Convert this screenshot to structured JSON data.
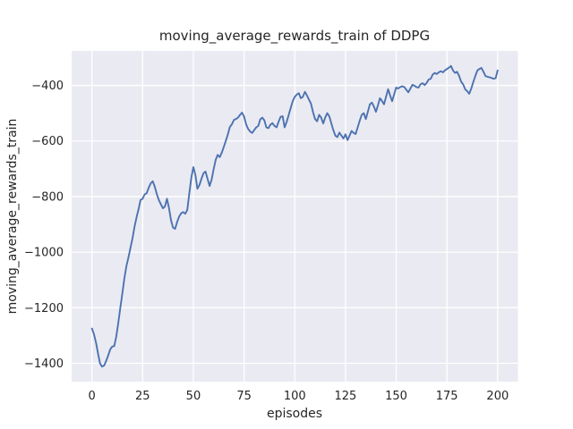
{
  "figure": {
    "background": "#ffffff",
    "axes_background": "#eaeaf2",
    "grid_color": "#ffffff",
    "text_color": "#262626",
    "line_color": "#4c72b0"
  },
  "chart_data": {
    "type": "line",
    "title": "moving_average_rewards_train of DDPG",
    "xlabel": "episodes",
    "ylabel": "moving_average_rewards_train",
    "grid": true,
    "legend_position": "none",
    "xlim": [
      -10,
      210
    ],
    "ylim": [
      -1466,
      -276
    ],
    "xticks": [
      {
        "value": 0,
        "label": "0"
      },
      {
        "value": 25,
        "label": "25"
      },
      {
        "value": 50,
        "label": "50"
      },
      {
        "value": 75,
        "label": "75"
      },
      {
        "value": 100,
        "label": "100"
      },
      {
        "value": 125,
        "label": "125"
      },
      {
        "value": 150,
        "label": "150"
      },
      {
        "value": 175,
        "label": "175"
      },
      {
        "value": 200,
        "label": "200"
      }
    ],
    "yticks": [
      {
        "value": -400,
        "label": "−400"
      },
      {
        "value": -600,
        "label": "−600"
      },
      {
        "value": -800,
        "label": "−800"
      },
      {
        "value": -1000,
        "label": "−1000"
      },
      {
        "value": -1200,
        "label": "−1200"
      },
      {
        "value": -1400,
        "label": "−1400"
      }
    ],
    "series": [
      {
        "name": "moving_average_rewards_train",
        "color": "#4c72b0",
        "x_start": 0,
        "x_step": 1,
        "values": [
          -1275,
          -1295,
          -1325,
          -1365,
          -1400,
          -1412,
          -1408,
          -1392,
          -1372,
          -1350,
          -1340,
          -1338,
          -1305,
          -1255,
          -1200,
          -1150,
          -1095,
          -1050,
          -1020,
          -985,
          -950,
          -910,
          -875,
          -845,
          -812,
          -808,
          -792,
          -788,
          -768,
          -752,
          -745,
          -765,
          -792,
          -812,
          -828,
          -842,
          -836,
          -808,
          -842,
          -885,
          -912,
          -916,
          -892,
          -872,
          -860,
          -856,
          -862,
          -848,
          -790,
          -732,
          -694,
          -722,
          -772,
          -758,
          -736,
          -716,
          -710,
          -736,
          -762,
          -740,
          -702,
          -668,
          -650,
          -658,
          -642,
          -622,
          -600,
          -576,
          -550,
          -540,
          -524,
          -521,
          -516,
          -506,
          -498,
          -512,
          -540,
          -556,
          -566,
          -571,
          -561,
          -551,
          -546,
          -522,
          -516,
          -526,
          -551,
          -554,
          -541,
          -536,
          -546,
          -551,
          -531,
          -513,
          -511,
          -551,
          -531,
          -506,
          -481,
          -456,
          -441,
          -433,
          -428,
          -446,
          -441,
          -423,
          -436,
          -451,
          -466,
          -496,
          -521,
          -529,
          -506,
          -516,
          -537,
          -516,
          -500,
          -511,
          -536,
          -561,
          -581,
          -586,
          -570,
          -581,
          -591,
          -576,
          -597,
          -581,
          -564,
          -571,
          -575,
          -551,
          -527,
          -506,
          -500,
          -521,
          -496,
          -468,
          -462,
          -476,
          -495,
          -471,
          -446,
          -456,
          -468,
          -441,
          -414,
          -436,
          -457,
          -431,
          -408,
          -411,
          -406,
          -403,
          -406,
          -416,
          -425,
          -411,
          -398,
          -401,
          -406,
          -408,
          -396,
          -392,
          -399,
          -391,
          -379,
          -376,
          -361,
          -355,
          -359,
          -353,
          -349,
          -353,
          -346,
          -341,
          -336,
          -330,
          -346,
          -355,
          -351,
          -366,
          -387,
          -396,
          -414,
          -421,
          -430,
          -411,
          -387,
          -366,
          -346,
          -341,
          -337,
          -351,
          -366,
          -369,
          -371,
          -373,
          -376,
          -374,
          -346
        ]
      }
    ]
  }
}
